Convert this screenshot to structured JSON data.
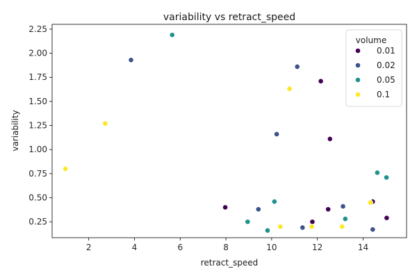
{
  "chart_data": {
    "type": "scatter",
    "title": "variability vs retract_speed",
    "xlabel": "retract_speed",
    "ylabel": "variability",
    "xlim": [
      0.4,
      15.9
    ],
    "ylim": [
      0.085,
      2.3
    ],
    "xticks": [
      2,
      4,
      6,
      8,
      10,
      12,
      14
    ],
    "yticks": [
      0.25,
      0.5,
      0.75,
      1.0,
      1.25,
      1.5,
      1.75,
      2.0,
      2.25
    ],
    "ytick_labels": [
      "0.25",
      "0.50",
      "0.75",
      "1.00",
      "1.25",
      "1.50",
      "1.75",
      "2.00",
      "2.25"
    ],
    "grid": false,
    "legend": {
      "title": "volume",
      "position": "top-right"
    },
    "series": [
      {
        "name": "0.01",
        "color": "#440154",
        "points": [
          {
            "x": 12.15,
            "y": 1.71
          },
          {
            "x": 12.55,
            "y": 1.11
          },
          {
            "x": 7.97,
            "y": 0.4
          },
          {
            "x": 11.78,
            "y": 0.25
          },
          {
            "x": 12.47,
            "y": 0.38
          },
          {
            "x": 14.42,
            "y": 0.46
          },
          {
            "x": 15.03,
            "y": 0.29
          }
        ]
      },
      {
        "name": "0.02",
        "color": "#3b528b",
        "points": [
          {
            "x": 3.85,
            "y": 1.93
          },
          {
            "x": 11.12,
            "y": 1.86
          },
          {
            "x": 10.22,
            "y": 1.16
          },
          {
            "x": 9.42,
            "y": 0.38
          },
          {
            "x": 13.12,
            "y": 0.41
          },
          {
            "x": 11.35,
            "y": 0.19
          },
          {
            "x": 14.42,
            "y": 0.17
          }
        ]
      },
      {
        "name": "0.05",
        "color": "#21918c",
        "points": [
          {
            "x": 5.65,
            "y": 2.19
          },
          {
            "x": 14.62,
            "y": 0.76
          },
          {
            "x": 15.02,
            "y": 0.71
          },
          {
            "x": 10.12,
            "y": 0.46
          },
          {
            "x": 8.95,
            "y": 0.25
          },
          {
            "x": 9.82,
            "y": 0.16
          },
          {
            "x": 13.22,
            "y": 0.28
          }
        ]
      },
      {
        "name": "0.1",
        "color": "#fde725",
        "points": [
          {
            "x": 10.78,
            "y": 1.63
          },
          {
            "x": 2.72,
            "y": 1.27
          },
          {
            "x": 0.98,
            "y": 0.8
          },
          {
            "x": 10.38,
            "y": 0.2
          },
          {
            "x": 11.75,
            "y": 0.2
          },
          {
            "x": 13.08,
            "y": 0.2
          },
          {
            "x": 14.32,
            "y": 0.45
          }
        ]
      }
    ]
  }
}
